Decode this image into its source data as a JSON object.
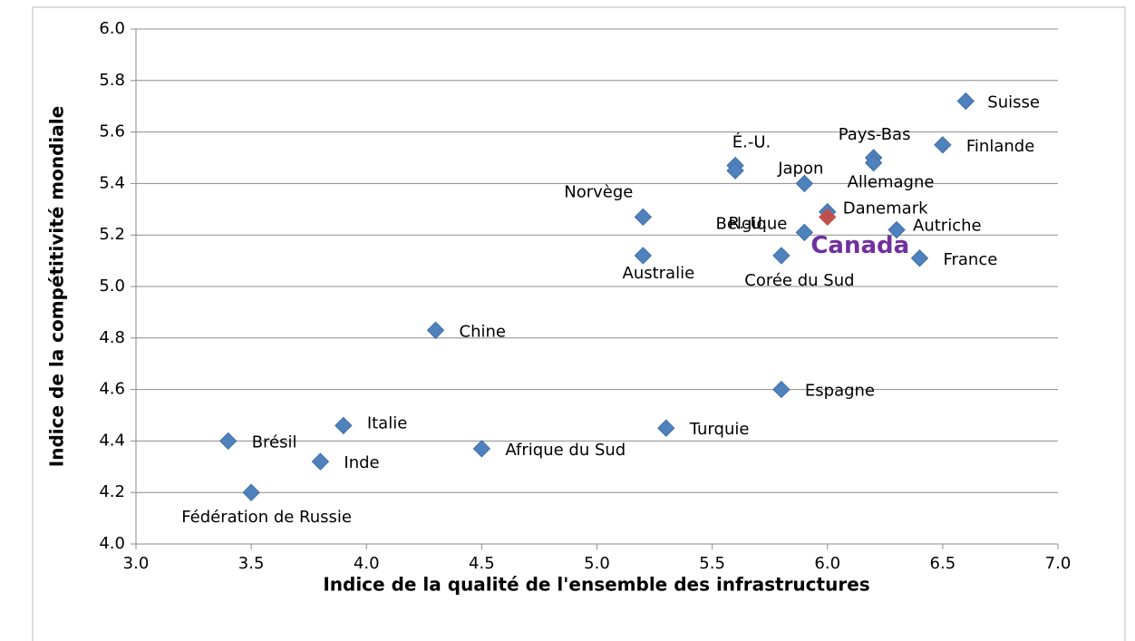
{
  "chart_data": {
    "type": "scatter",
    "xlabel": "Indice de la qualité de l'ensemble des infrastructures",
    "ylabel": "Indice de la compétitivité mondiale",
    "labels": [
      "Suisse",
      "Finlande",
      "Pays-Bas",
      "Allemagne",
      "É.-U.",
      "R.-U.",
      "Japon",
      "Norvège",
      "Australie",
      "Danemark",
      "Canada",
      "Belgique",
      "Autriche",
      "Corée du Sud",
      "France",
      "Chine",
      "Espagne",
      "Italie",
      "Turquie",
      "Brésil",
      "Afrique du Sud",
      "Inde",
      "Fédération de Russie"
    ],
    "x": [
      6.6,
      6.5,
      6.2,
      6.2,
      5.6,
      5.6,
      5.9,
      5.2,
      5.2,
      6.0,
      6.0,
      5.9,
      6.3,
      5.8,
      6.4,
      4.3,
      5.8,
      3.9,
      5.3,
      3.4,
      4.5,
      3.8,
      3.5
    ],
    "values": [
      5.72,
      5.55,
      5.5,
      5.48,
      5.47,
      5.45,
      5.4,
      5.27,
      5.12,
      5.29,
      5.27,
      5.21,
      5.22,
      5.12,
      5.11,
      4.83,
      4.6,
      4.46,
      4.45,
      4.4,
      4.37,
      4.32,
      4.2
    ],
    "colors": [
      "#4f81bd",
      "#4f81bd",
      "#4f81bd",
      "#4f81bd",
      "#4f81bd",
      "#4f81bd",
      "#4f81bd",
      "#4f81bd",
      "#4f81bd",
      "#4f81bd",
      "#c0504d",
      "#4f81bd",
      "#4f81bd",
      "#4f81bd",
      "#4f81bd",
      "#4f81bd",
      "#4f81bd",
      "#4f81bd",
      "#4f81bd",
      "#4f81bd",
      "#4f81bd",
      "#4f81bd",
      "#4f81bd"
    ],
    "label_colors": [
      "#000000",
      "#000000",
      "#000000",
      "#000000",
      "#000000",
      "#000000",
      "#000000",
      "#000000",
      "#000000",
      "#000000",
      "#7030a0",
      "#000000",
      "#000000",
      "#000000",
      "#000000",
      "#000000",
      "#000000",
      "#000000",
      "#000000",
      "#000000",
      "#000000",
      "#000000",
      "#000000"
    ],
    "xlim": [
      3,
      7
    ],
    "xticks": [
      {
        "value": 3,
        "label": "3.0"
      },
      {
        "value": 3.5,
        "label": "3.5"
      },
      {
        "value": 4,
        "label": "4.0"
      },
      {
        "value": 4.5,
        "label": "4.5"
      },
      {
        "value": 5,
        "label": "5.0"
      },
      {
        "value": 5.5,
        "label": "5.5"
      },
      {
        "value": 6,
        "label": "6.0"
      },
      {
        "value": 6.5,
        "label": "6.5"
      },
      {
        "value": 7,
        "label": "7.0"
      }
    ],
    "ylim": [
      4,
      6
    ],
    "yticks": [
      {
        "value": 4,
        "label": "4.0"
      },
      {
        "value": 4.2,
        "label": "4.2"
      },
      {
        "value": 4.4,
        "label": "4.4"
      },
      {
        "value": 4.6,
        "label": "4.6"
      },
      {
        "value": 4.8,
        "label": "4.8"
      },
      {
        "value": 5,
        "label": "5.0"
      },
      {
        "value": 5.2,
        "label": "5.2"
      },
      {
        "value": 5.4,
        "label": "5.4"
      },
      {
        "value": 5.6,
        "label": "5.6"
      },
      {
        "value": 5.8,
        "label": "5.8"
      },
      {
        "value": 6,
        "label": "6.0"
      }
    ],
    "grid": true
  }
}
